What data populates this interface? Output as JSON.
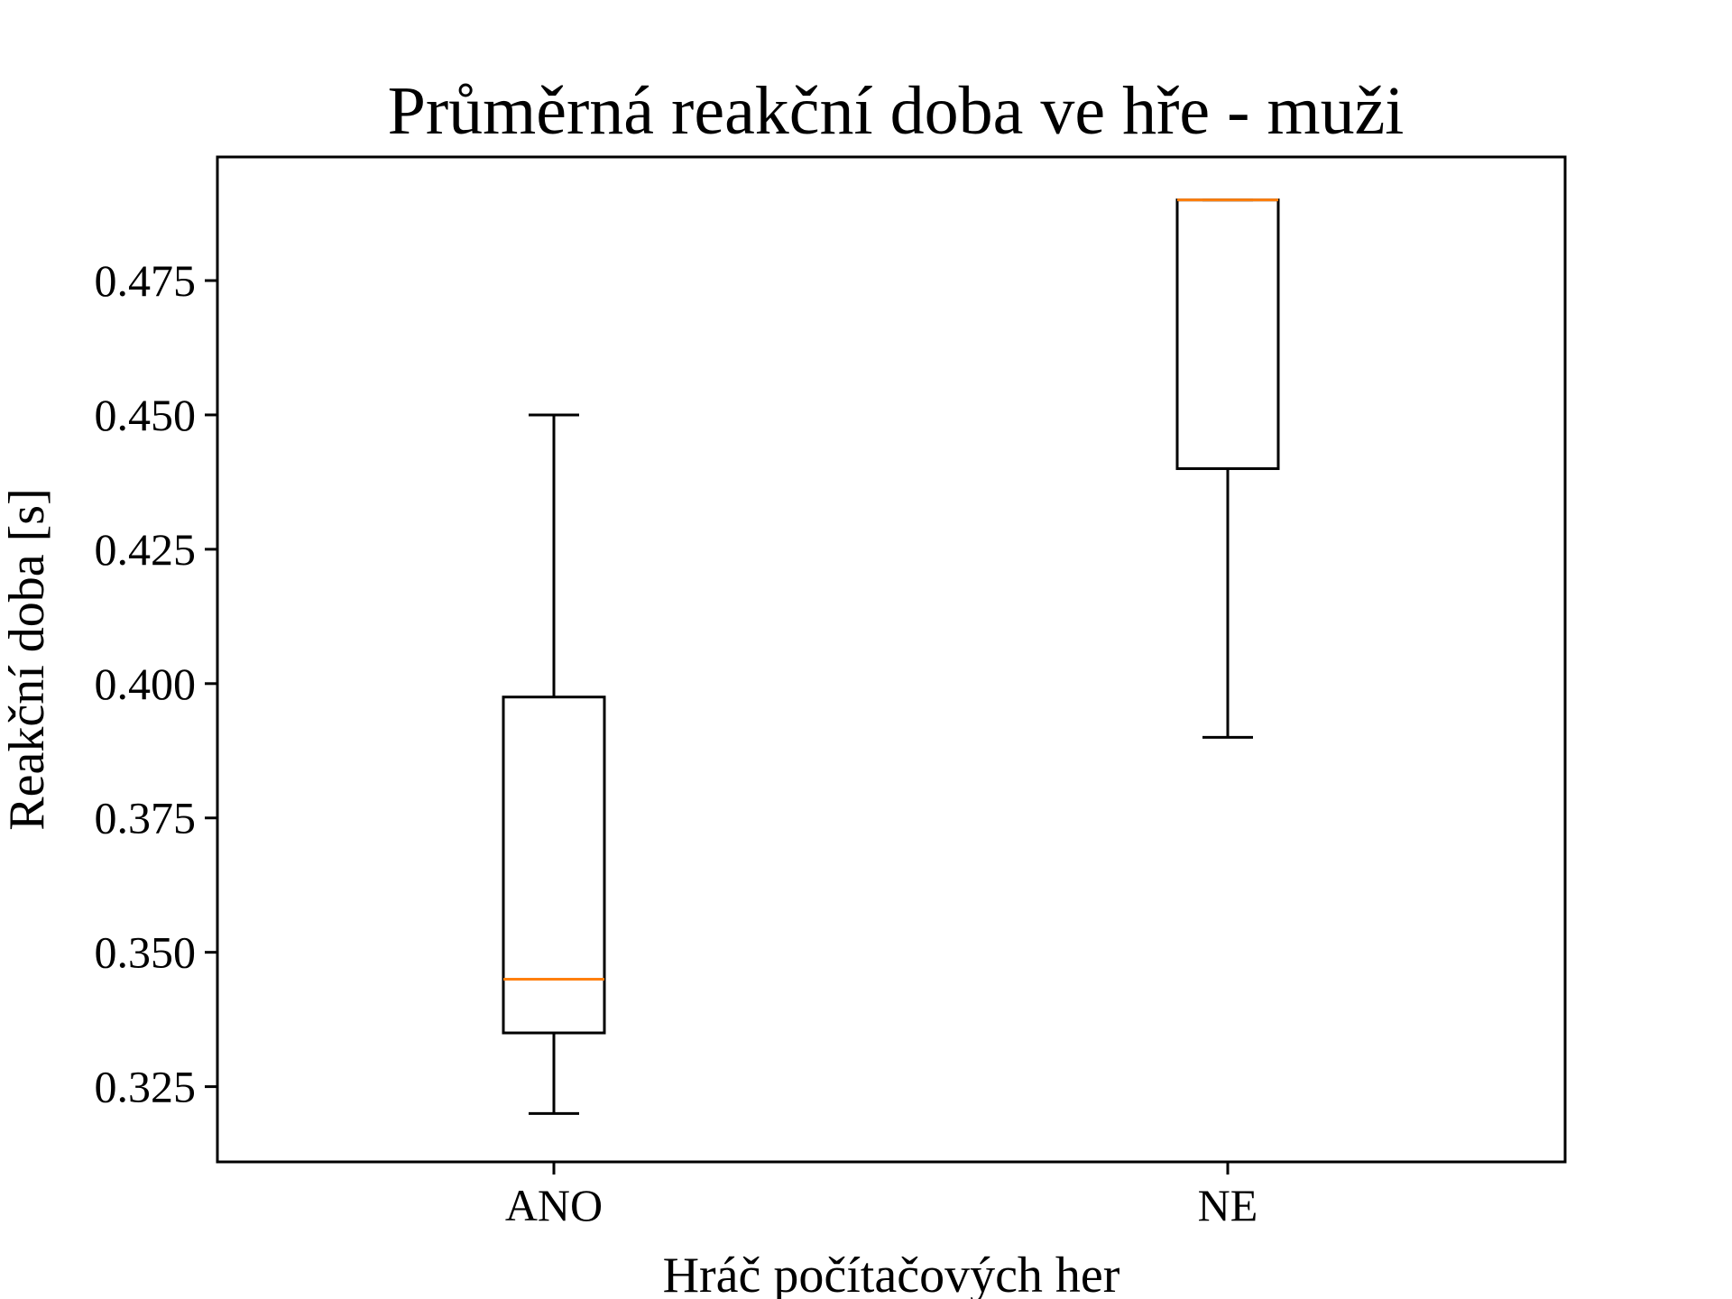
{
  "chart_data": {
    "type": "box",
    "title": "Průměrná reakční doba ve hře - muži",
    "xlabel": "Hráč počítačových her",
    "ylabel": "Reakční doba [s]",
    "categories": [
      "ANO",
      "NE"
    ],
    "ylim": [
      0.311,
      0.498
    ],
    "yticks": [
      0.325,
      0.35,
      0.375,
      0.4,
      0.425,
      0.45,
      0.475
    ],
    "ytick_labels": [
      "0.325",
      "0.350",
      "0.375",
      "0.400",
      "0.425",
      "0.450",
      "0.475"
    ],
    "boxes": [
      {
        "category": "ANO",
        "whisker_low": 0.32,
        "q1": 0.335,
        "median": 0.345,
        "q3": 0.3975,
        "whisker_high": 0.45
      },
      {
        "category": "NE",
        "whisker_low": 0.39,
        "q1": 0.44,
        "median": 0.49,
        "q3": 0.49,
        "whisker_high": 0.49
      }
    ],
    "grid": false,
    "colors": {
      "box": "#000000",
      "median": "#ff7f0e",
      "axes": "#000000"
    }
  }
}
